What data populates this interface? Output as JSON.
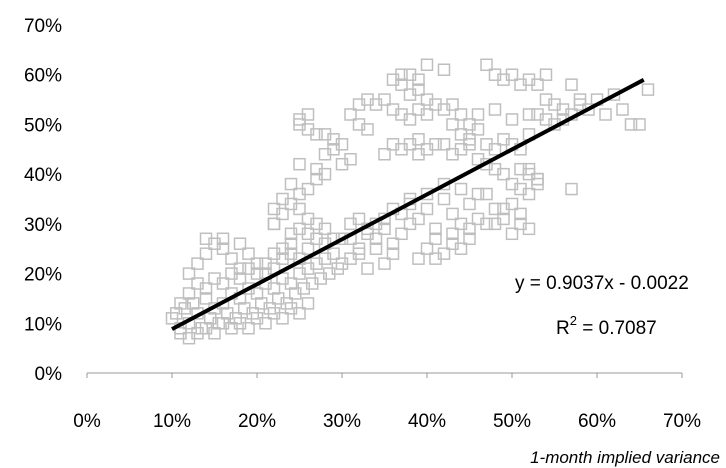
{
  "chart_data": {
    "type": "scatter",
    "title": "",
    "xlabel": "1-month implied variance",
    "ylabel": "",
    "xlim": [
      0,
      0.7
    ],
    "ylim": [
      0,
      0.7
    ],
    "x_ticks": [
      "0%",
      "10%",
      "20%",
      "30%",
      "40%",
      "50%",
      "60%",
      "70%"
    ],
    "y_ticks": [
      "0%",
      "10%",
      "20%",
      "30%",
      "40%",
      "50%",
      "60%",
      "70%"
    ],
    "grid": false,
    "marker": "open-square",
    "marker_color": "#bfbfbf",
    "trendline": {
      "slope": 0.9037,
      "intercept": -0.0022,
      "color": "#000000"
    },
    "equation_label": "y = 0.9037x - 0.0022",
    "r2_label": {
      "prefix": "R",
      "exponent": "2",
      "value": " = 0.7087"
    },
    "series": [
      {
        "points": [
          [
            0.1,
            0.11
          ],
          [
            0.105,
            0.12
          ],
          [
            0.11,
            0.09
          ],
          [
            0.115,
            0.13
          ],
          [
            0.12,
            0.1
          ],
          [
            0.125,
            0.14
          ],
          [
            0.13,
            0.12
          ],
          [
            0.135,
            0.09
          ],
          [
            0.14,
            0.15
          ],
          [
            0.145,
            0.11
          ],
          [
            0.15,
            0.13
          ],
          [
            0.155,
            0.1
          ],
          [
            0.16,
            0.14
          ],
          [
            0.165,
            0.12
          ],
          [
            0.17,
            0.16
          ],
          [
            0.175,
            0.11
          ],
          [
            0.18,
            0.15
          ],
          [
            0.185,
            0.13
          ],
          [
            0.19,
            0.17
          ],
          [
            0.195,
            0.12
          ],
          [
            0.2,
            0.16
          ],
          [
            0.205,
            0.14
          ],
          [
            0.21,
            0.18
          ],
          [
            0.215,
            0.13
          ],
          [
            0.22,
            0.17
          ],
          [
            0.225,
            0.15
          ],
          [
            0.23,
            0.19
          ],
          [
            0.235,
            0.14
          ],
          [
            0.24,
            0.18
          ],
          [
            0.245,
            0.16
          ],
          [
            0.25,
            0.2
          ],
          [
            0.255,
            0.17
          ],
          [
            0.26,
            0.21
          ],
          [
            0.265,
            0.18
          ],
          [
            0.27,
            0.22
          ],
          [
            0.275,
            0.19
          ],
          [
            0.28,
            0.23
          ],
          [
            0.285,
            0.2
          ],
          [
            0.29,
            0.24
          ],
          [
            0.295,
            0.21
          ],
          [
            0.11,
            0.08
          ],
          [
            0.12,
            0.07
          ],
          [
            0.13,
            0.08
          ],
          [
            0.14,
            0.09
          ],
          [
            0.15,
            0.08
          ],
          [
            0.16,
            0.1
          ],
          [
            0.17,
            0.09
          ],
          [
            0.18,
            0.1
          ],
          [
            0.19,
            0.09
          ],
          [
            0.2,
            0.11
          ],
          [
            0.21,
            0.1
          ],
          [
            0.22,
            0.12
          ],
          [
            0.23,
            0.11
          ],
          [
            0.24,
            0.13
          ],
          [
            0.25,
            0.12
          ],
          [
            0.26,
            0.14
          ],
          [
            0.12,
            0.2
          ],
          [
            0.13,
            0.22
          ],
          [
            0.14,
            0.24
          ],
          [
            0.15,
            0.26
          ],
          [
            0.16,
            0.25
          ],
          [
            0.17,
            0.23
          ],
          [
            0.18,
            0.21
          ],
          [
            0.14,
            0.27
          ],
          [
            0.16,
            0.27
          ],
          [
            0.18,
            0.26
          ],
          [
            0.19,
            0.24
          ],
          [
            0.2,
            0.22
          ],
          [
            0.21,
            0.2
          ],
          [
            0.22,
            0.24
          ],
          [
            0.23,
            0.23
          ],
          [
            0.24,
            0.26
          ],
          [
            0.11,
            0.14
          ],
          [
            0.12,
            0.16
          ],
          [
            0.13,
            0.18
          ],
          [
            0.14,
            0.17
          ],
          [
            0.15,
            0.19
          ],
          [
            0.16,
            0.18
          ],
          [
            0.17,
            0.2
          ],
          [
            0.18,
            0.19
          ],
          [
            0.19,
            0.21
          ],
          [
            0.2,
            0.2
          ],
          [
            0.21,
            0.22
          ],
          [
            0.22,
            0.21
          ],
          [
            0.23,
            0.25
          ],
          [
            0.24,
            0.24
          ],
          [
            0.25,
            0.23
          ],
          [
            0.26,
            0.25
          ],
          [
            0.22,
            0.3
          ],
          [
            0.23,
            0.32
          ],
          [
            0.24,
            0.34
          ],
          [
            0.25,
            0.33
          ],
          [
            0.23,
            0.35
          ],
          [
            0.22,
            0.33
          ],
          [
            0.26,
            0.31
          ],
          [
            0.25,
            0.29
          ],
          [
            0.24,
            0.28
          ],
          [
            0.26,
            0.28
          ],
          [
            0.27,
            0.27
          ],
          [
            0.28,
            0.26
          ],
          [
            0.27,
            0.3
          ],
          [
            0.26,
            0.37
          ],
          [
            0.27,
            0.39
          ],
          [
            0.28,
            0.4
          ],
          [
            0.27,
            0.41
          ],
          [
            0.25,
            0.42
          ],
          [
            0.24,
            0.38
          ],
          [
            0.25,
            0.36
          ],
          [
            0.22,
            0.3
          ],
          [
            0.3,
            0.22
          ],
          [
            0.31,
            0.23
          ],
          [
            0.32,
            0.24
          ],
          [
            0.33,
            0.21
          ],
          [
            0.34,
            0.25
          ],
          [
            0.35,
            0.22
          ],
          [
            0.36,
            0.26
          ],
          [
            0.31,
            0.27
          ],
          [
            0.32,
            0.25
          ],
          [
            0.33,
            0.28
          ],
          [
            0.34,
            0.27
          ],
          [
            0.35,
            0.29
          ],
          [
            0.36,
            0.24
          ],
          [
            0.37,
            0.28
          ],
          [
            0.38,
            0.3
          ],
          [
            0.37,
            0.32
          ],
          [
            0.38,
            0.34
          ],
          [
            0.39,
            0.31
          ],
          [
            0.4,
            0.33
          ],
          [
            0.41,
            0.29
          ],
          [
            0.42,
            0.35
          ],
          [
            0.43,
            0.32
          ],
          [
            0.44,
            0.3
          ],
          [
            0.45,
            0.34
          ],
          [
            0.46,
            0.31
          ],
          [
            0.47,
            0.36
          ],
          [
            0.48,
            0.3
          ],
          [
            0.49,
            0.33
          ],
          [
            0.5,
            0.28
          ],
          [
            0.51,
            0.32
          ],
          [
            0.52,
            0.29
          ],
          [
            0.4,
            0.25
          ],
          [
            0.41,
            0.27
          ],
          [
            0.42,
            0.24
          ],
          [
            0.43,
            0.26
          ],
          [
            0.44,
            0.25
          ],
          [
            0.45,
            0.27
          ],
          [
            0.39,
            0.23
          ],
          [
            0.41,
            0.23
          ],
          [
            0.43,
            0.28
          ],
          [
            0.45,
            0.29
          ],
          [
            0.47,
            0.3
          ],
          [
            0.48,
            0.33
          ],
          [
            0.49,
            0.31
          ],
          [
            0.5,
            0.34
          ],
          [
            0.51,
            0.3
          ],
          [
            0.52,
            0.36
          ],
          [
            0.53,
            0.39
          ],
          [
            0.46,
            0.36
          ],
          [
            0.44,
            0.37
          ],
          [
            0.42,
            0.38
          ],
          [
            0.4,
            0.36
          ],
          [
            0.38,
            0.35
          ],
          [
            0.36,
            0.33
          ],
          [
            0.35,
            0.31
          ],
          [
            0.34,
            0.3
          ],
          [
            0.33,
            0.29
          ],
          [
            0.32,
            0.31
          ],
          [
            0.31,
            0.3
          ],
          [
            0.3,
            0.27
          ],
          [
            0.29,
            0.27
          ],
          [
            0.28,
            0.29
          ],
          [
            0.42,
            0.46
          ],
          [
            0.43,
            0.44
          ],
          [
            0.44,
            0.45
          ],
          [
            0.45,
            0.47
          ],
          [
            0.46,
            0.43
          ],
          [
            0.47,
            0.42
          ],
          [
            0.48,
            0.41
          ],
          [
            0.49,
            0.4
          ],
          [
            0.5,
            0.38
          ],
          [
            0.51,
            0.37
          ],
          [
            0.52,
            0.41
          ],
          [
            0.53,
            0.39
          ],
          [
            0.47,
            0.46
          ],
          [
            0.48,
            0.45
          ],
          [
            0.49,
            0.47
          ],
          [
            0.5,
            0.46
          ],
          [
            0.51,
            0.45
          ],
          [
            0.52,
            0.48
          ],
          [
            0.53,
            0.52
          ],
          [
            0.54,
            0.51
          ],
          [
            0.55,
            0.5
          ],
          [
            0.56,
            0.53
          ],
          [
            0.57,
            0.52
          ],
          [
            0.58,
            0.54
          ],
          [
            0.59,
            0.53
          ],
          [
            0.6,
            0.55
          ],
          [
            0.61,
            0.52
          ],
          [
            0.62,
            0.56
          ],
          [
            0.63,
            0.53
          ],
          [
            0.64,
            0.5
          ],
          [
            0.65,
            0.5
          ],
          [
            0.66,
            0.57
          ],
          [
            0.57,
            0.58
          ],
          [
            0.58,
            0.55
          ],
          [
            0.55,
            0.54
          ],
          [
            0.56,
            0.51
          ],
          [
            0.54,
            0.55
          ],
          [
            0.53,
            0.58
          ],
          [
            0.52,
            0.59
          ],
          [
            0.51,
            0.58
          ],
          [
            0.49,
            0.59
          ],
          [
            0.47,
            0.62
          ],
          [
            0.48,
            0.6
          ],
          [
            0.5,
            0.6
          ],
          [
            0.54,
            0.6
          ],
          [
            0.42,
            0.61
          ],
          [
            0.4,
            0.62
          ],
          [
            0.39,
            0.59
          ],
          [
            0.38,
            0.6
          ],
          [
            0.37,
            0.6
          ],
          [
            0.36,
            0.59
          ],
          [
            0.37,
            0.58
          ],
          [
            0.38,
            0.56
          ],
          [
            0.39,
            0.57
          ],
          [
            0.4,
            0.55
          ],
          [
            0.41,
            0.54
          ],
          [
            0.4,
            0.52
          ],
          [
            0.39,
            0.53
          ],
          [
            0.38,
            0.51
          ],
          [
            0.37,
            0.52
          ],
          [
            0.36,
            0.53
          ],
          [
            0.35,
            0.55
          ],
          [
            0.34,
            0.54
          ],
          [
            0.33,
            0.55
          ],
          [
            0.32,
            0.54
          ],
          [
            0.31,
            0.52
          ],
          [
            0.32,
            0.5
          ],
          [
            0.33,
            0.49
          ],
          [
            0.3,
            0.46
          ],
          [
            0.29,
            0.45
          ],
          [
            0.28,
            0.44
          ],
          [
            0.3,
            0.42
          ],
          [
            0.31,
            0.43
          ],
          [
            0.29,
            0.47
          ],
          [
            0.28,
            0.48
          ],
          [
            0.27,
            0.48
          ],
          [
            0.26,
            0.49
          ],
          [
            0.25,
            0.5
          ],
          [
            0.26,
            0.52
          ],
          [
            0.25,
            0.51
          ],
          [
            0.46,
            0.49
          ],
          [
            0.45,
            0.5
          ],
          [
            0.44,
            0.52
          ],
          [
            0.43,
            0.54
          ],
          [
            0.42,
            0.53
          ],
          [
            0.43,
            0.5
          ],
          [
            0.44,
            0.48
          ],
          [
            0.45,
            0.46
          ],
          [
            0.39,
            0.47
          ],
          [
            0.38,
            0.46
          ],
          [
            0.37,
            0.45
          ],
          [
            0.36,
            0.46
          ],
          [
            0.35,
            0.44
          ],
          [
            0.39,
            0.44
          ],
          [
            0.4,
            0.45
          ],
          [
            0.41,
            0.46
          ],
          [
            0.57,
            0.37
          ],
          [
            0.51,
            0.41
          ],
          [
            0.52,
            0.4
          ],
          [
            0.53,
            0.38
          ],
          [
            0.46,
            0.52
          ],
          [
            0.48,
            0.53
          ],
          [
            0.5,
            0.51
          ],
          [
            0.52,
            0.52
          ]
        ]
      }
    ]
  }
}
